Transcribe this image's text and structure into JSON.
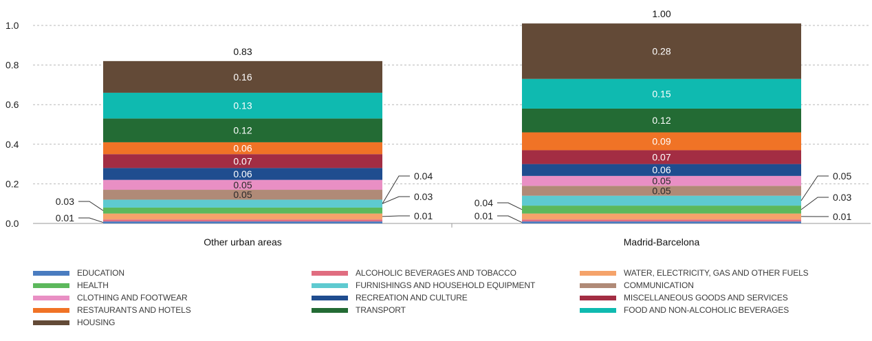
{
  "chart_data": {
    "type": "bar",
    "stacked": true,
    "ylim": [
      0,
      1.0
    ],
    "yticks": [
      "0.0",
      "0.2",
      "0.4",
      "0.6",
      "0.8",
      "1.0"
    ],
    "grid": true,
    "legend_position": "bottom",
    "categories": [
      "Other urban areas",
      "Madrid-Barcelona"
    ],
    "totals": [
      "0.83",
      "1.00"
    ],
    "series": [
      {
        "name": "EDUCATION",
        "color": "#4a7cc0",
        "values": [
          0.01,
          0.01
        ],
        "label": [
          "0.01",
          "0.01"
        ]
      },
      {
        "name": "ALCOHOLIC BEVERAGES AND TOBACCO",
        "color": "#e06d80",
        "values": [
          0.01,
          0.01
        ],
        "label": [
          "0.01",
          "0.01"
        ]
      },
      {
        "name": "WATER, ELECTRICITY, GAS AND OTHER FUELS",
        "color": "#f5a36a",
        "values": [
          0.03,
          0.03
        ],
        "label": [
          "0.03",
          "0.03"
        ]
      },
      {
        "name": "HEALTH",
        "color": "#5cb85c",
        "values": [
          0.03,
          0.04
        ],
        "label": [
          "0.03",
          "0.04"
        ]
      },
      {
        "name": "FURNISHINGS AND HOUSEHOLD EQUIPMENT",
        "color": "#5ecad0",
        "values": [
          0.04,
          0.05
        ],
        "label": [
          "0.04",
          "0.05"
        ]
      },
      {
        "name": "COMMUNICATION",
        "color": "#b08a77",
        "values": [
          0.05,
          0.05
        ],
        "label": [
          "0.05",
          "0.05"
        ]
      },
      {
        "name": "CLOTHING AND FOOTWEAR",
        "color": "#e98fc4",
        "values": [
          0.05,
          0.05
        ],
        "label": [
          "0.05",
          "0.05"
        ]
      },
      {
        "name": "RECREATION AND CULTURE",
        "color": "#1f4d8f",
        "values": [
          0.06,
          0.06
        ],
        "label": [
          "0.06",
          "0.06"
        ]
      },
      {
        "name": "MISCELLANEOUS GOODS AND SERVICES",
        "color": "#a32d43",
        "values": [
          0.07,
          0.07
        ],
        "label": [
          "0.07",
          "0.07"
        ]
      },
      {
        "name": "RESTAURANTS AND HOTELS",
        "color": "#f07326",
        "values": [
          0.06,
          0.09
        ],
        "label": [
          "0.06",
          "0.09"
        ]
      },
      {
        "name": "TRANSPORT",
        "color": "#236b34",
        "values": [
          0.12,
          0.12
        ],
        "label": [
          "0.12",
          "0.12"
        ]
      },
      {
        "name": "FOOD AND NON-ALCOHOLIC BEVERAGES",
        "color": "#0fbab0",
        "values": [
          0.13,
          0.15
        ],
        "label": [
          "0.13",
          "0.15"
        ]
      },
      {
        "name": "HOUSING",
        "color": "#634a37",
        "values": [
          0.16,
          0.28
        ],
        "label": [
          "0.16",
          "0.28"
        ]
      }
    ]
  }
}
